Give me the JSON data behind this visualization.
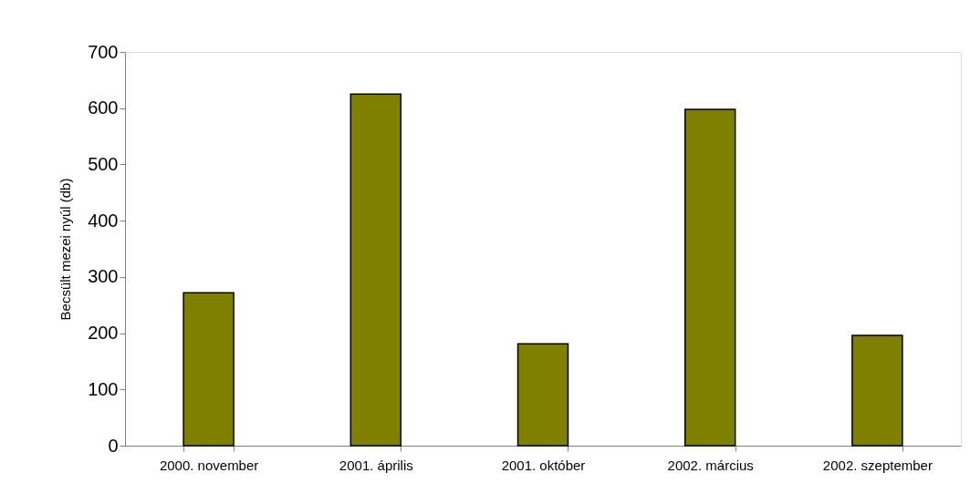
{
  "chart_data": {
    "type": "bar",
    "ylabel": "Becsült mezei nyúl (db)",
    "categories": [
      "2000. november",
      "2001. április",
      "2001. október",
      "2002. március",
      "2002. szeptember"
    ],
    "values": [
      272,
      625,
      181,
      598,
      196
    ],
    "color": "#808000",
    "ylim": [
      0,
      700
    ],
    "yticks": [
      0,
      100,
      200,
      300,
      400,
      500,
      600,
      700
    ],
    "grid": false
  }
}
